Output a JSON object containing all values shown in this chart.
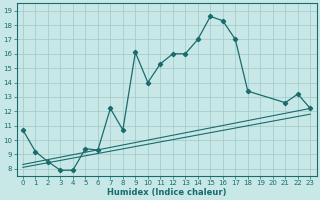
{
  "xlabel": "Humidex (Indice chaleur)",
  "bg_color": "#c8e8e8",
  "line_color": "#1a6b6b",
  "grid_color": "#a0c8c8",
  "xlim": [
    -0.5,
    23.5
  ],
  "ylim": [
    7.5,
    19.5
  ],
  "xticks": [
    0,
    1,
    2,
    3,
    4,
    5,
    6,
    7,
    8,
    9,
    10,
    11,
    12,
    13,
    14,
    15,
    16,
    17,
    18,
    19,
    20,
    21,
    22,
    23
  ],
  "yticks": [
    8,
    9,
    10,
    11,
    12,
    13,
    14,
    15,
    16,
    17,
    18,
    19
  ],
  "main_x": [
    0,
    1,
    2,
    3,
    4,
    5,
    6,
    7,
    8,
    9,
    10,
    11,
    12,
    13,
    14,
    15,
    16,
    17,
    18,
    21,
    22,
    23
  ],
  "main_y": [
    10.7,
    9.2,
    8.5,
    7.9,
    7.9,
    9.4,
    9.3,
    12.2,
    10.7,
    16.1,
    14.0,
    15.3,
    16.0,
    16.0,
    17.0,
    18.6,
    18.3,
    17.0,
    13.4,
    12.6,
    13.2,
    12.2
  ],
  "line2_x": [
    0,
    23
  ],
  "line2_y": [
    8.3,
    12.2
  ],
  "line3_x": [
    0,
    23
  ],
  "line3_y": [
    8.1,
    11.8
  ],
  "xlabel_fontsize": 6,
  "tick_fontsize": 5
}
